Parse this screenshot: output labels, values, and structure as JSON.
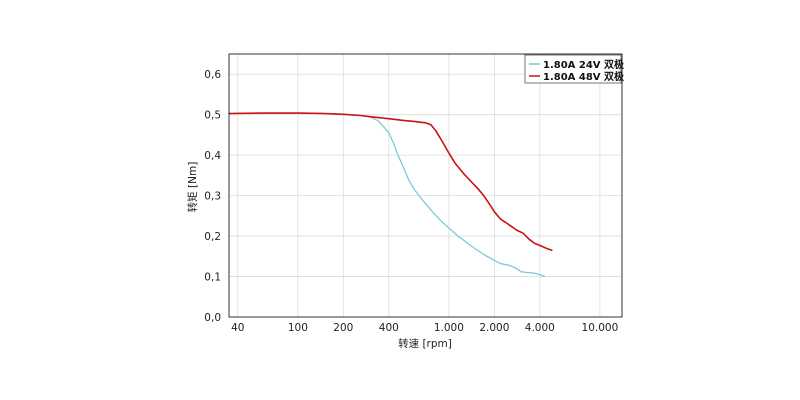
{
  "chart_data": {
    "type": "line",
    "xlabel": "转速 [rpm]",
    "ylabel": "转矩 [Nm]",
    "x_scale": "log",
    "xlim": [
      35,
      14000
    ],
    "ylim": [
      0,
      0.65
    ],
    "x_ticks": [
      {
        "value": 40,
        "label": "40"
      },
      {
        "value": 100,
        "label": "100"
      },
      {
        "value": 200,
        "label": "200"
      },
      {
        "value": 400,
        "label": "400"
      },
      {
        "value": 1000,
        "label": "1.000"
      },
      {
        "value": 2000,
        "label": "2.000"
      },
      {
        "value": 4000,
        "label": "4.000"
      },
      {
        "value": 10000,
        "label": "10.000"
      }
    ],
    "y_ticks": [
      {
        "value": 0,
        "label": "0,0"
      },
      {
        "value": 0.1,
        "label": "0,1"
      },
      {
        "value": 0.2,
        "label": "0,2"
      },
      {
        "value": 0.3,
        "label": "0,3"
      },
      {
        "value": 0.4,
        "label": "0,4"
      },
      {
        "value": 0.5,
        "label": "0,5"
      },
      {
        "value": 0.6,
        "label": "0,6"
      }
    ],
    "grid": true,
    "legend_position": "top-right",
    "series": [
      {
        "name": "1.80A 24V 双极",
        "color": "#7ec8dc",
        "points": [
          [
            35,
            0.503
          ],
          [
            60,
            0.504
          ],
          [
            100,
            0.504
          ],
          [
            150,
            0.503
          ],
          [
            200,
            0.501
          ],
          [
            260,
            0.498
          ],
          [
            300,
            0.495
          ],
          [
            340,
            0.485
          ],
          [
            370,
            0.47
          ],
          [
            400,
            0.455
          ],
          [
            430,
            0.43
          ],
          [
            460,
            0.4
          ],
          [
            500,
            0.37
          ],
          [
            540,
            0.34
          ],
          [
            590,
            0.315
          ],
          [
            650,
            0.295
          ],
          [
            720,
            0.275
          ],
          [
            800,
            0.255
          ],
          [
            900,
            0.235
          ],
          [
            1000,
            0.22
          ],
          [
            1150,
            0.2
          ],
          [
            1300,
            0.185
          ],
          [
            1500,
            0.168
          ],
          [
            1750,
            0.152
          ],
          [
            2000,
            0.14
          ],
          [
            2200,
            0.132
          ],
          [
            2500,
            0.128
          ],
          [
            2800,
            0.12
          ],
          [
            3000,
            0.112
          ],
          [
            3300,
            0.11
          ],
          [
            3600,
            0.109
          ],
          [
            4000,
            0.105
          ],
          [
            4300,
            0.1
          ]
        ]
      },
      {
        "name": "1.80A 48V 双极",
        "color": "#cc1111",
        "points": [
          [
            35,
            0.503
          ],
          [
            60,
            0.504
          ],
          [
            100,
            0.504
          ],
          [
            150,
            0.503
          ],
          [
            200,
            0.501
          ],
          [
            260,
            0.498
          ],
          [
            300,
            0.495
          ],
          [
            400,
            0.49
          ],
          [
            500,
            0.486
          ],
          [
            600,
            0.483
          ],
          [
            700,
            0.48
          ],
          [
            760,
            0.475
          ],
          [
            820,
            0.46
          ],
          [
            900,
            0.435
          ],
          [
            1000,
            0.405
          ],
          [
            1100,
            0.38
          ],
          [
            1250,
            0.355
          ],
          [
            1400,
            0.335
          ],
          [
            1550,
            0.318
          ],
          [
            1700,
            0.3
          ],
          [
            1850,
            0.28
          ],
          [
            2000,
            0.26
          ],
          [
            2200,
            0.242
          ],
          [
            2500,
            0.228
          ],
          [
            2800,
            0.215
          ],
          [
            3100,
            0.207
          ],
          [
            3400,
            0.192
          ],
          [
            3700,
            0.182
          ],
          [
            4000,
            0.177
          ],
          [
            4400,
            0.17
          ],
          [
            4800,
            0.165
          ]
        ]
      }
    ]
  }
}
